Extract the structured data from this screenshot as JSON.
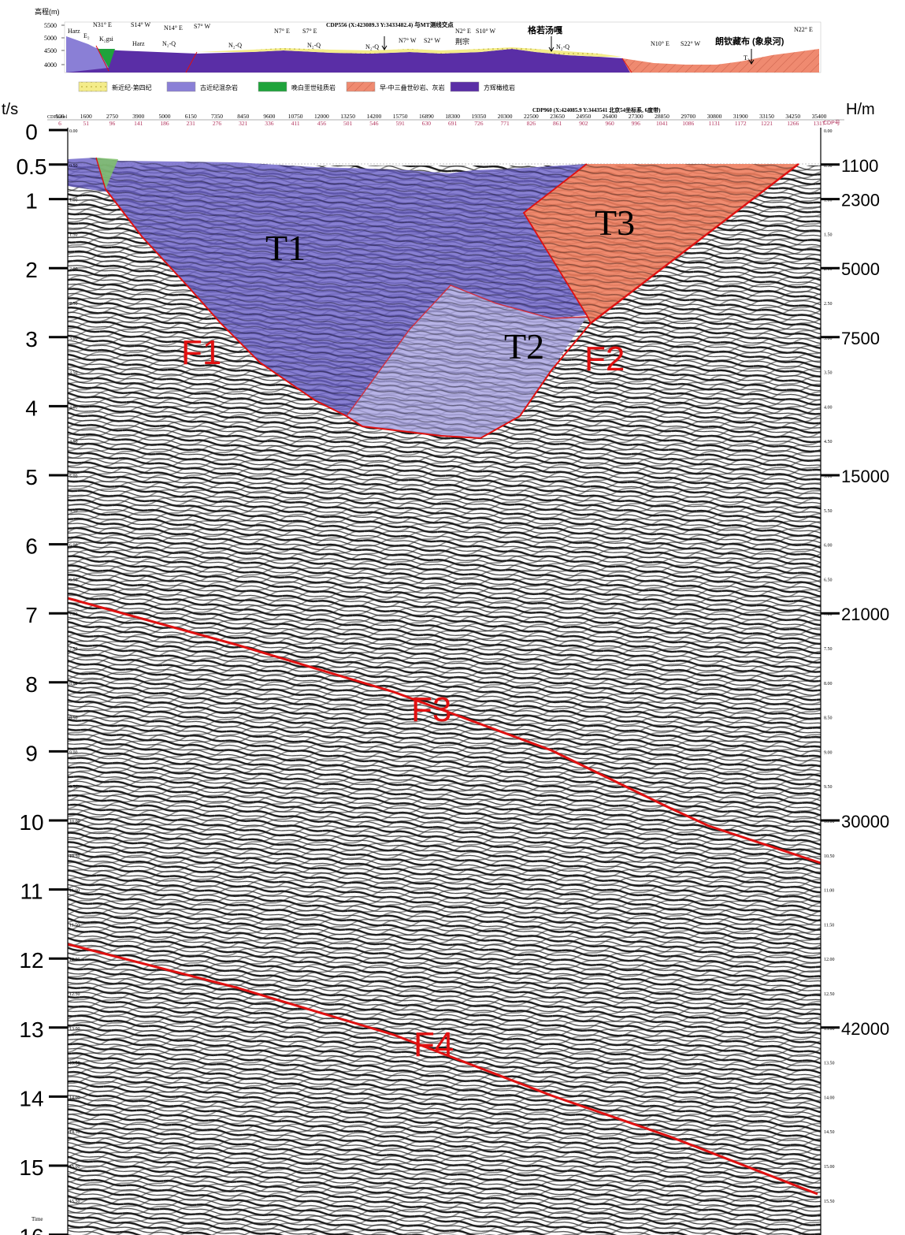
{
  "profile": {
    "elevation_label": "高程(m)",
    "elevation_ticks": [
      "5500",
      "5000",
      "4500",
      "4000"
    ],
    "center_note": "CDP556 (X:423089.3 Y:3433482.4) 与MT测线交点",
    "place_left": "格若汤嘎",
    "place_right": "朗钦藏布 (象泉河)",
    "place_mid": "荆宗",
    "dips": [
      "N31° E",
      "S14° W",
      "N14° E",
      "S7° W",
      "N7° E",
      "S7° E",
      "N7° W",
      "S2° W",
      "N2° E",
      "S10° W",
      "N10° E",
      "S22° W",
      "N22° E"
    ],
    "units": [
      "Harz",
      "E₂",
      "K₂gsi",
      "Harz",
      "N₂-Q",
      "N₂-Q",
      "N₂-Q",
      "N₂-Q",
      "N₂-Q",
      "T₃"
    ]
  },
  "legend": [
    {
      "label": "新近纪-第四纪",
      "color": "#f4ec8a"
    },
    {
      "label": "古近纪混杂岩",
      "color": "#8a7fd6"
    },
    {
      "label": "晚白垩世硅质岩",
      "color": "#1fa33b"
    },
    {
      "label": "早-中三叠世砂岩、灰岩",
      "color": "#ef8a70"
    },
    {
      "label": "方辉橄榄岩",
      "color": "#5a2ea6"
    }
  ],
  "section": {
    "left_axis_title": "t/s",
    "right_axis_title": "H/m",
    "cdp_note": "CDP960 (X:424085.9 Y:3443541 北京54坐标系, 6度带)",
    "stake_label": "CDPLabel",
    "cdp_label": "CDP号",
    "stake_numbers": [
      "500",
      "1600",
      "2750",
      "3900",
      "5000",
      "6150",
      "7350",
      "8450",
      "9600",
      "10750",
      "12000",
      "13250",
      "14200",
      "15750",
      "16890",
      "18300",
      "19350",
      "20300",
      "22500",
      "23650",
      "24950",
      "26400",
      "27300",
      "28850",
      "29700",
      "30800",
      "31900",
      "33150",
      "34250",
      "35400"
    ],
    "cdp_numbers": [
      "6",
      "51",
      "96",
      "141",
      "186",
      "231",
      "276",
      "321",
      "336",
      "411",
      "456",
      "501",
      "546",
      "591",
      "630",
      "691",
      "726",
      "771",
      "826",
      "861",
      "902",
      "960",
      "996",
      "1041",
      "1086",
      "1131",
      "1172",
      "1221",
      "1266",
      "1317"
    ],
    "left_major": [
      "0",
      "0.5",
      "1",
      "2",
      "3",
      "4",
      "5",
      "6",
      "7",
      "8",
      "9",
      "10",
      "11",
      "12",
      "13",
      "14",
      "15",
      "16"
    ],
    "right_depth": [
      "1100",
      "2300",
      "5000",
      "7500",
      "15000",
      "21000",
      "30000",
      "42000"
    ],
    "minor": [
      "0.00",
      "0.50",
      "1.00",
      "1.50",
      "2.00",
      "2.50",
      "3.00",
      "3.50",
      "4.00",
      "4.50",
      "5.00",
      "5.50",
      "6.00",
      "6.50",
      "7.00",
      "7.50",
      "8.00",
      "8.50",
      "9.00",
      "9.50",
      "10.00",
      "10.50",
      "11.00",
      "11.50",
      "12.00",
      "12.50",
      "13.00",
      "13.50",
      "14.00",
      "14.50",
      "15.00",
      "15.50"
    ],
    "time_label": "Time",
    "units_labels": {
      "t1": "T1",
      "t2": "T2",
      "t3": "T3"
    },
    "fault_labels": {
      "f1": "F1",
      "f2": "F2",
      "f3": "F3",
      "f4": "F4"
    }
  },
  "colors": {
    "t1": "#6c63c8",
    "t2": "#a7a2e0",
    "t3": "#ee7e5f",
    "fault": "#e01010",
    "profile_purple": "#5a2ea6",
    "profile_red": "#ef8a70",
    "cdp_red": "#b0305a"
  }
}
